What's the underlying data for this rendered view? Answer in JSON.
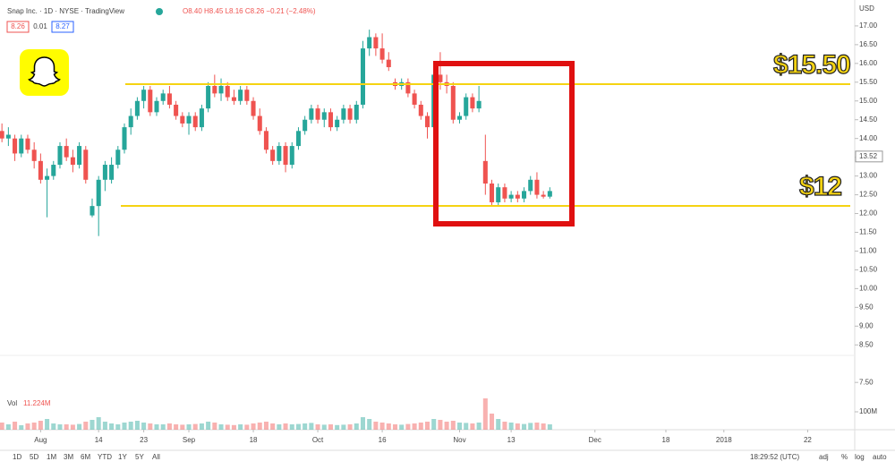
{
  "header": {
    "symbol": "Snap Inc. · 1D · NYSE · TradingView",
    "ohlc": "O8.40 H8.45 L8.16 C8.26 −0.21 (−2.48%)",
    "bid": "8.26",
    "spread": "0.01",
    "ask": "8.27",
    "currency": "USD"
  },
  "chart_data": {
    "type": "candlestick",
    "up_color": "#26a69a",
    "down_color": "#ef5350",
    "open": [
      14.2,
      14.0,
      14.0,
      13.6,
      14.0,
      13.7,
      13.4,
      12.9,
      13.0,
      13.3,
      13.8,
      13.5,
      13.3,
      13.7,
      11.95,
      12.2,
      12.9,
      12.9,
      13.3,
      13.7,
      14.3,
      14.6,
      15.0,
      15.3,
      14.7,
      15.0,
      15.2,
      14.9,
      14.6,
      14.4,
      14.6,
      14.3,
      14.8,
      15.4,
      15.2,
      15.4,
      15.1,
      15.0,
      15.3,
      15.0,
      14.6,
      14.2,
      13.7,
      13.4,
      13.8,
      13.3,
      13.8,
      14.2,
      14.5,
      14.8,
      14.5,
      14.7,
      14.3,
      14.5,
      14.8,
      14.5,
      14.9,
      16.4,
      16.7,
      16.4,
      16.1,
      15.5,
      15.4,
      15.5,
      15.2,
      14.9,
      14.6,
      14.3,
      15.7,
      15.5,
      15.4,
      14.5,
      14.6,
      15.1,
      14.8,
      13.4,
      12.8,
      12.3,
      12.7,
      12.4,
      12.5,
      12.4,
      12.6,
      12.9,
      12.5,
      12.45
    ],
    "high": [
      14.4,
      14.3,
      14.1,
      14.1,
      14.1,
      13.9,
      13.6,
      13.2,
      13.4,
      13.9,
      14.0,
      13.7,
      13.9,
      13.8,
      12.4,
      13.0,
      13.4,
      13.5,
      13.8,
      14.4,
      14.8,
      15.1,
      15.4,
      15.4,
      15.1,
      15.3,
      15.4,
      15.0,
      14.7,
      14.7,
      14.7,
      14.9,
      15.5,
      15.7,
      15.6,
      15.5,
      15.3,
      15.4,
      15.4,
      15.1,
      14.8,
      14.3,
      13.8,
      13.9,
      13.9,
      13.9,
      14.3,
      14.6,
      14.9,
      14.9,
      14.8,
      14.8,
      14.6,
      14.9,
      14.9,
      15.0,
      16.6,
      16.9,
      16.8,
      16.8,
      16.3,
      15.6,
      15.6,
      15.6,
      15.3,
      15.0,
      14.7,
      15.9,
      16.3,
      15.7,
      15.5,
      14.7,
      15.2,
      15.2,
      15.4,
      14.1,
      12.9,
      12.8,
      12.8,
      12.6,
      12.6,
      12.7,
      13.0,
      13.1,
      12.6,
      12.7
    ],
    "low": [
      13.9,
      13.8,
      13.4,
      13.5,
      13.6,
      13.2,
      12.8,
      11.9,
      12.9,
      13.2,
      13.4,
      13.1,
      13.2,
      12.8,
      11.9,
      11.4,
      12.6,
      12.8,
      13.2,
      13.6,
      14.1,
      14.5,
      14.8,
      14.6,
      14.6,
      14.9,
      14.8,
      14.5,
      14.3,
      14.1,
      14.2,
      14.2,
      14.7,
      15.1,
      15.0,
      15.0,
      14.9,
      14.9,
      14.9,
      14.5,
      14.1,
      13.6,
      13.3,
      13.3,
      13.1,
      13.2,
      13.7,
      14.1,
      14.4,
      14.4,
      14.3,
      14.2,
      14.2,
      14.4,
      14.4,
      14.4,
      14.8,
      16.2,
      16.2,
      16.0,
      15.8,
      15.3,
      15.3,
      15.1,
      14.8,
      14.5,
      14.0,
      14.2,
      15.3,
      15.2,
      14.4,
      14.4,
      14.5,
      14.7,
      14.7,
      12.5,
      12.2,
      12.2,
      12.3,
      12.3,
      12.3,
      12.3,
      12.5,
      12.4,
      12.4,
      12.4
    ],
    "close": [
      14.0,
      14.1,
      13.6,
      14.0,
      13.7,
      13.4,
      12.9,
      13.0,
      13.3,
      13.8,
      13.5,
      13.3,
      13.8,
      12.9,
      12.2,
      12.9,
      13.3,
      13.3,
      13.7,
      14.3,
      14.6,
      15.0,
      15.3,
      14.7,
      15.0,
      15.2,
      14.9,
      14.6,
      14.4,
      14.6,
      14.3,
      14.8,
      15.4,
      15.2,
      15.4,
      15.1,
      15.0,
      15.3,
      15.0,
      14.6,
      14.2,
      13.7,
      13.4,
      13.8,
      13.3,
      13.8,
      14.2,
      14.5,
      14.8,
      14.5,
      14.7,
      14.3,
      14.5,
      14.8,
      14.5,
      14.9,
      16.4,
      16.7,
      16.4,
      16.1,
      15.9,
      15.4,
      15.5,
      15.2,
      14.9,
      14.6,
      14.3,
      15.7,
      15.5,
      15.4,
      14.5,
      14.6,
      15.1,
      14.8,
      15.0,
      12.8,
      12.3,
      12.7,
      12.4,
      12.5,
      12.4,
      12.6,
      12.9,
      12.5,
      12.45,
      12.6
    ],
    "volume": [
      40,
      30,
      45,
      25,
      35,
      40,
      50,
      60,
      35,
      30,
      30,
      28,
      32,
      45,
      55,
      70,
      45,
      35,
      30,
      40,
      45,
      50,
      40,
      35,
      30,
      30,
      35,
      30,
      28,
      30,
      32,
      35,
      45,
      40,
      30,
      28,
      26,
      30,
      28,
      35,
      40,
      45,
      35,
      30,
      35,
      30,
      32,
      35,
      38,
      30,
      28,
      30,
      26,
      28,
      30,
      35,
      70,
      60,
      45,
      40,
      35,
      30,
      28,
      32,
      35,
      40,
      45,
      60,
      55,
      45,
      50,
      40,
      38,
      35,
      40,
      175,
      90,
      60,
      45,
      40,
      35,
      32,
      38,
      40,
      35,
      30
    ],
    "xlim": [
      -0.3,
      132.3
    ],
    "xticks": [
      {
        "value": 6,
        "label": "Aug"
      },
      {
        "value": 15,
        "label": "14"
      },
      {
        "value": 22,
        "label": "23"
      },
      {
        "value": 29,
        "label": "Sep"
      },
      {
        "value": 39,
        "label": "18"
      },
      {
        "value": 49,
        "label": "Oct"
      },
      {
        "value": 59,
        "label": "16"
      },
      {
        "value": 71,
        "label": "Nov"
      },
      {
        "value": 79,
        "label": "13"
      },
      {
        "value": 92,
        "label": "Dec"
      },
      {
        "value": 103,
        "label": "18"
      },
      {
        "value": 112,
        "label": "2018"
      },
      {
        "value": 125,
        "label": "22"
      }
    ],
    "ylim": [
      6.24,
      17.69
    ],
    "yticks": [
      {
        "value": 17,
        "label": "17.00"
      },
      {
        "value": 16.5,
        "label": "16.50"
      },
      {
        "value": 16,
        "label": "16.00"
      },
      {
        "value": 15.5,
        "label": "15.50"
      },
      {
        "value": 15,
        "label": "15.00"
      },
      {
        "value": 14.5,
        "label": "14.50"
      },
      {
        "value": 14,
        "label": "14.00"
      },
      {
        "value": 13.5,
        "label": "13.50"
      },
      {
        "value": 13,
        "label": "13.00"
      },
      {
        "value": 12.5,
        "label": "12.50"
      },
      {
        "value": 12,
        "label": "12.00"
      },
      {
        "value": 11.5,
        "label": "11.50"
      },
      {
        "value": 11,
        "label": "11.00"
      },
      {
        "value": 10.5,
        "label": "10.50"
      },
      {
        "value": 10,
        "label": "10.00"
      },
      {
        "value": 9.5,
        "label": "9.50"
      },
      {
        "value": 9,
        "label": "9.00"
      },
      {
        "value": 8.5,
        "label": "8.50"
      },
      {
        "value": 7.5,
        "label": "7.50"
      }
    ],
    "price_tag": {
      "value": 13.52,
      "label": "13.52"
    },
    "vlim": [
      0,
      200
    ],
    "vticks": [
      {
        "value": 100,
        "label": "100M"
      }
    ],
    "volume_label": "Vol",
    "volume_value": "11.224M",
    "annotations": [
      "$15.50",
      "$12"
    ]
  },
  "toolbar": {
    "ranges": [
      "1D",
      "5D",
      "1M",
      "3M",
      "6M",
      "YTD",
      "1Y",
      "5Y",
      "All"
    ],
    "time": "18:29:52 (UTC)",
    "options": [
      "adj",
      "%",
      "log",
      "auto"
    ]
  }
}
